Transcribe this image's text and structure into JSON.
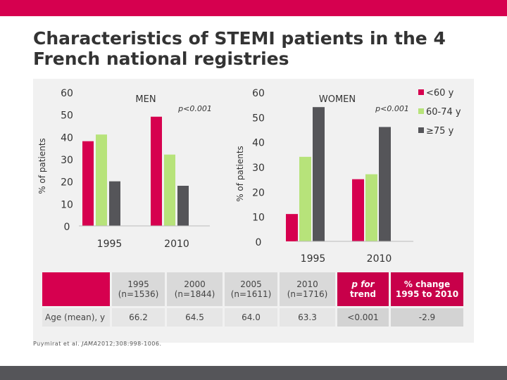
{
  "slide": {
    "title": "Characteristics of STEMI patients in the 4 French national registries",
    "citation_journal": "JAMA",
    "citation_prefix": "Puymirat et al.",
    "citation_suffix": "2012;308:998-1006."
  },
  "colors": {
    "brand": "#d6004f",
    "lt60": "#d6004f",
    "60to74": "#b7e37a",
    "ge75": "#555559",
    "top_bar": "#d6004f",
    "bottom_bar": "#555559"
  },
  "chart_data": [
    {
      "type": "bar",
      "title": "MEN",
      "annotation": "p<0.001",
      "ylabel": "% of patients",
      "ylim": [
        0,
        60
      ],
      "yticks": [
        "0",
        "10",
        "20",
        "30",
        "40",
        "50",
        "60"
      ],
      "categories": [
        "1995",
        "2010"
      ],
      "series": [
        {
          "name": "<60 y",
          "values": [
            38,
            49
          ]
        },
        {
          "name": "60-74 y",
          "values": [
            41,
            32
          ]
        },
        {
          "name": "≥75 y",
          "values": [
            20,
            18
          ]
        }
      ]
    },
    {
      "type": "bar",
      "title": "WOMEN",
      "annotation": "p<0.001",
      "ylabel": "% of patients",
      "ylim": [
        0,
        60
      ],
      "yticks": [
        "0",
        "10",
        "20",
        "30",
        "40",
        "50",
        "60"
      ],
      "categories": [
        "1995",
        "2010"
      ],
      "series": [
        {
          "name": "<60 y",
          "values": [
            11,
            25
          ]
        },
        {
          "name": "60-74 y",
          "values": [
            34,
            27
          ]
        },
        {
          "name": "≥75 y",
          "values": [
            54,
            46
          ]
        }
      ],
      "legend": {
        "position": "top-right",
        "entries": [
          "<60 y",
          "60-74 y",
          "≥75 y"
        ]
      }
    },
    {
      "type": "table",
      "columns": [
        "",
        "1995 (n=1536)",
        "2000 (n=1844)",
        "2005 (n=1611)",
        "2010 (n=1716)",
        "p for trend",
        "% change 1995 to 2010"
      ],
      "header_lines": [
        [
          "",
          ""
        ],
        [
          "1995",
          "(n=1536)"
        ],
        [
          "2000",
          "(n=1844)"
        ],
        [
          "2005",
          "(n=1611)"
        ],
        [
          "2010",
          "(n=1716)"
        ],
        [
          "p for",
          "trend"
        ],
        [
          "% change",
          "1995 to 2010"
        ]
      ],
      "rows": [
        [
          "Age (mean), y",
          "66.2",
          "64.5",
          "64.0",
          "63.3",
          "<0.001",
          "-2.9"
        ]
      ]
    }
  ]
}
